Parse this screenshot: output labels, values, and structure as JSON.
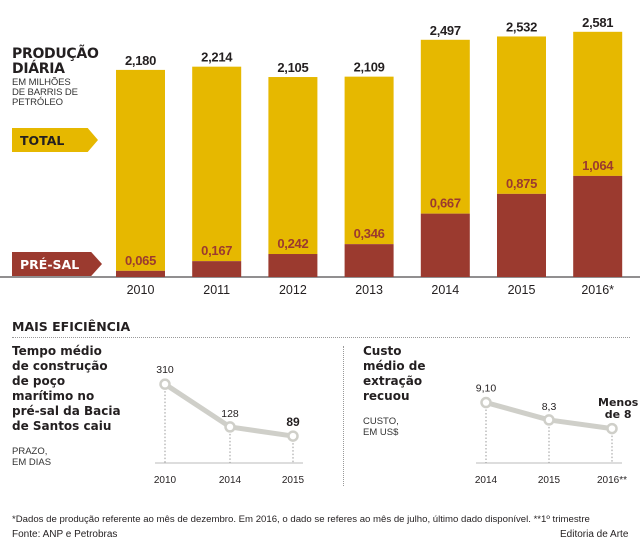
{
  "header": {
    "title_line1": "PRODUÇÃO",
    "title_line2": "DIÁRIA",
    "subtitle_line1": "EM MILHÕES",
    "subtitle_line2": "DE BARRIS DE",
    "subtitle_line3": "PETRÓLEO"
  },
  "legend": {
    "total": "TOTAL",
    "presal": "PRÉ-SAL"
  },
  "colors": {
    "total": "#e6b800",
    "presal": "#9b3a2f",
    "line": "#cfcfc9",
    "axis": "#231f20",
    "tag_total": "#e6b800",
    "tag_presal": "#9b3a2f"
  },
  "section": {
    "title": "MAIS EFICIÊNCIA"
  },
  "panel_left": {
    "line1": "Tempo médio",
    "line2": "de construção",
    "line3": "de poço",
    "line4": "marítimo no",
    "line5": "pré-sal da Bacia",
    "line6": "de Santos caiu",
    "unit_line1": "PRAZO,",
    "unit_line2": "EM DIAS"
  },
  "panel_right": {
    "line1": "Custo",
    "line2": "médio de",
    "line3": "extração",
    "line4": "recuou",
    "unit_line1": "CUSTO,",
    "unit_line2": "EM US$",
    "last_label_line1": "Menos",
    "last_label_line2": "de 8"
  },
  "footer": {
    "note": "*Dados de produção referente ao mês de dezembro. Em 2016, o dado se referes ao mês de julho, último dado disponível. **1º trimestre",
    "source": "Fonte: ANP e Petrobras",
    "credit": "Editoria de Arte"
  },
  "chart_data": [
    {
      "type": "bar",
      "title": "PRODUÇÃO DIÁRIA",
      "subtitle": "EM MILHÕES DE BARRIS DE PETRÓLEO",
      "categories": [
        "2010",
        "2011",
        "2012",
        "2013",
        "2014",
        "2015",
        "2016*"
      ],
      "series": [
        {
          "name": "TOTAL",
          "values": [
            2.18,
            2.214,
            2.105,
            2.109,
            2.497,
            2.532,
            2.581
          ],
          "labels": [
            "2,180",
            "2,214",
            "2,105",
            "2,109",
            "2,497",
            "2,532",
            "2,581"
          ]
        },
        {
          "name": "PRÉ-SAL",
          "values": [
            0.065,
            0.167,
            0.242,
            0.346,
            0.667,
            0.875,
            1.064
          ],
          "labels": [
            "0,065",
            "0,167",
            "0,242",
            "0,346",
            "0,667",
            "0,875",
            "1,064"
          ]
        }
      ],
      "ylim": [
        0,
        2.6
      ]
    },
    {
      "type": "line",
      "title": "Tempo médio de construção de poço marítimo no pré-sal da Bacia de Santos caiu",
      "ylabel": "PRAZO, EM DIAS",
      "x": [
        "2010",
        "2014",
        "2015"
      ],
      "values": [
        310,
        128,
        89
      ],
      "labels": [
        "310",
        "128",
        "89"
      ],
      "ylim": [
        0,
        400
      ]
    },
    {
      "type": "line",
      "title": "Custo médio de extração recuou",
      "ylabel": "CUSTO, EM US$",
      "x": [
        "2014",
        "2015",
        "2016**"
      ],
      "values": [
        9.1,
        8.3,
        7.9
      ],
      "labels": [
        "9,10",
        "8,3",
        ""
      ],
      "ylim": [
        6.5,
        10
      ]
    }
  ]
}
